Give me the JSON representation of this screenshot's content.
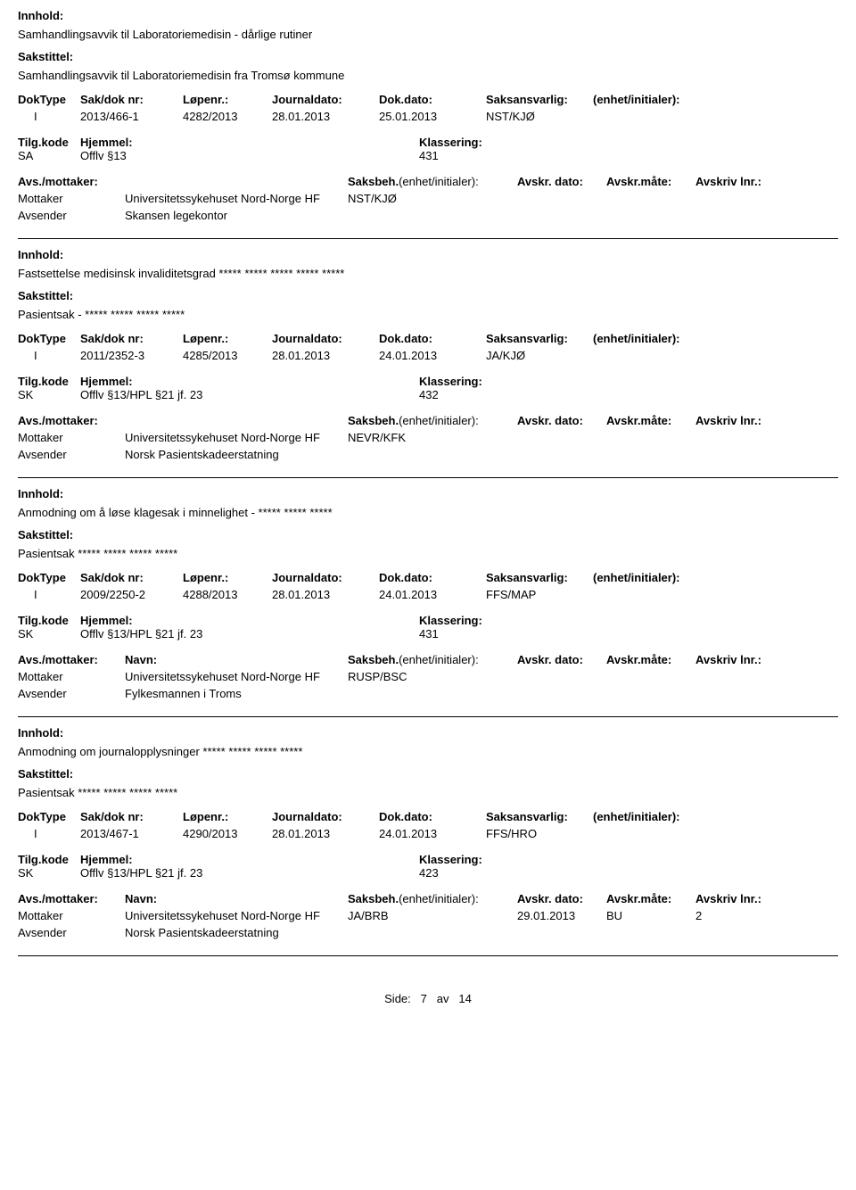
{
  "labels": {
    "innhold": "Innhold:",
    "sakstittel": "Sakstittel:",
    "doktype": "DokType",
    "sakdok": "Sak/dok nr:",
    "lopenr": "Løpenr.:",
    "journaldato": "Journaldato:",
    "dokdato": "Dok.dato:",
    "saksansvarlig": "Saksansvarlig:",
    "enhet": "(enhet/initialer):",
    "tilgkode": "Tilg.kode",
    "hjemmel": "Hjemmel:",
    "klassering": "Klassering:",
    "avsmottaker": "Avs./mottaker:",
    "navn": "Navn:",
    "saksbeh": "Saksbeh.",
    "saksbeh_enhet": "(enhet/initialer):",
    "avskrdato": "Avskr. dato:",
    "avskrmote": "Avskr.måte:",
    "avskrivlnr": "Avskriv lnr.:",
    "mottaker": "Mottaker",
    "avsender": "Avsender"
  },
  "records": [
    {
      "innhold": "Samhandlingsavvik til Laboratoriemedisin - dårlige rutiner",
      "sakstittel": "Samhandlingsavvik til Laboratoriemedisin fra Tromsø kommune",
      "doktype": "I",
      "sakdok": "2013/466-1",
      "lopenr": "4282/2013",
      "journaldato": "28.01.2013",
      "dokdato": "25.01.2013",
      "saksansvarlig": "NST/KJØ",
      "tilgkode": "SA",
      "hjemmel": "Offlv §13",
      "klassering": "431",
      "show_party_header": false,
      "mottaker_navn": "Universitetssykehuset Nord-Norge HF",
      "mottaker_saksbeh": "NST/KJØ",
      "mottaker_avskrdato": "",
      "mottaker_avskrmote": "",
      "mottaker_lnr": "",
      "avsender_navn": "Skansen legekontor"
    },
    {
      "innhold": "Fastsettelse medisinsk invaliditetsgrad ***** ***** ***** ***** *****",
      "sakstittel": "Pasientsak - ***** ***** ***** *****",
      "doktype": "I",
      "sakdok": "2011/2352-3",
      "lopenr": "4285/2013",
      "journaldato": "28.01.2013",
      "dokdato": "24.01.2013",
      "saksansvarlig": "JA/KJØ",
      "tilgkode": "SK",
      "hjemmel": "Offlv §13/HPL §21 jf. 23",
      "klassering": "432",
      "show_party_header": false,
      "mottaker_navn": "Universitetssykehuset Nord-Norge HF",
      "mottaker_saksbeh": "NEVR/KFK",
      "mottaker_avskrdato": "",
      "mottaker_avskrmote": "",
      "mottaker_lnr": "",
      "avsender_navn": "Norsk Pasientskadeerstatning"
    },
    {
      "innhold": "Anmodning om å løse klagesak i minnelighet - ***** ***** *****",
      "sakstittel": "Pasientsak ***** ***** ***** *****",
      "doktype": "I",
      "sakdok": "2009/2250-2",
      "lopenr": "4288/2013",
      "journaldato": "28.01.2013",
      "dokdato": "24.01.2013",
      "saksansvarlig": "FFS/MAP",
      "tilgkode": "SK",
      "hjemmel": "Offlv §13/HPL §21 jf. 23",
      "klassering": "431",
      "show_party_header": true,
      "mottaker_navn": "Universitetssykehuset Nord-Norge HF",
      "mottaker_saksbeh": "RUSP/BSC",
      "mottaker_avskrdato": "",
      "mottaker_avskrmote": "",
      "mottaker_lnr": "",
      "avsender_navn": "Fylkesmannen i Troms"
    },
    {
      "innhold": "Anmodning om journalopplysninger ***** ***** ***** *****",
      "sakstittel": "Pasientsak ***** ***** ***** *****",
      "doktype": "I",
      "sakdok": "2013/467-1",
      "lopenr": "4290/2013",
      "journaldato": "28.01.2013",
      "dokdato": "24.01.2013",
      "saksansvarlig": "FFS/HRO",
      "tilgkode": "SK",
      "hjemmel": "Offlv §13/HPL §21 jf. 23",
      "klassering": "423",
      "show_party_header": true,
      "mottaker_navn": "Universitetssykehuset Nord-Norge HF",
      "mottaker_saksbeh": "JA/BRB",
      "mottaker_avskrdato": "29.01.2013",
      "mottaker_avskrmote": "BU",
      "mottaker_lnr": "2",
      "avsender_navn": "Norsk Pasientskadeerstatning"
    }
  ],
  "footer": {
    "side": "Side:",
    "page": "7",
    "av": "av",
    "total": "14"
  }
}
